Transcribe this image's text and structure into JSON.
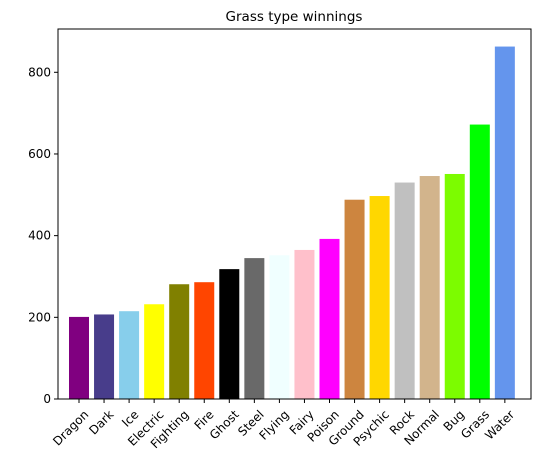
{
  "chart_data": {
    "type": "bar",
    "title": "Grass type winnings",
    "xlabel": "",
    "ylabel": "",
    "categories": [
      "Dragon",
      "Dark",
      "Ice",
      "Electric",
      "Fighting",
      "Fire",
      "Ghost",
      "Steel",
      "Flying",
      "Fairy",
      "Poison",
      "Ground",
      "Psychic",
      "Rock",
      "Normal",
      "Bug",
      "Grass",
      "Water"
    ],
    "values": [
      201,
      207,
      215,
      232,
      281,
      286,
      318,
      345,
      352,
      365,
      392,
      488,
      497,
      530,
      546,
      551,
      672,
      863
    ],
    "colors": [
      "#800080",
      "#483d8b",
      "#87ceeb",
      "#ffff00",
      "#808000",
      "#ff4500",
      "#000000",
      "#696969",
      "#f0ffff",
      "#ffc0cb",
      "#ff00ff",
      "#cd853f",
      "#ffd700",
      "#c0c0c0",
      "#d2b48c",
      "#7cfc00",
      "#00ff00",
      "#6495ed"
    ],
    "ylim": [
      0,
      906
    ],
    "yticks": [
      "0",
      "200",
      "400",
      "600",
      "800"
    ],
    "grid": false,
    "x_tick_rotation": 45
  }
}
